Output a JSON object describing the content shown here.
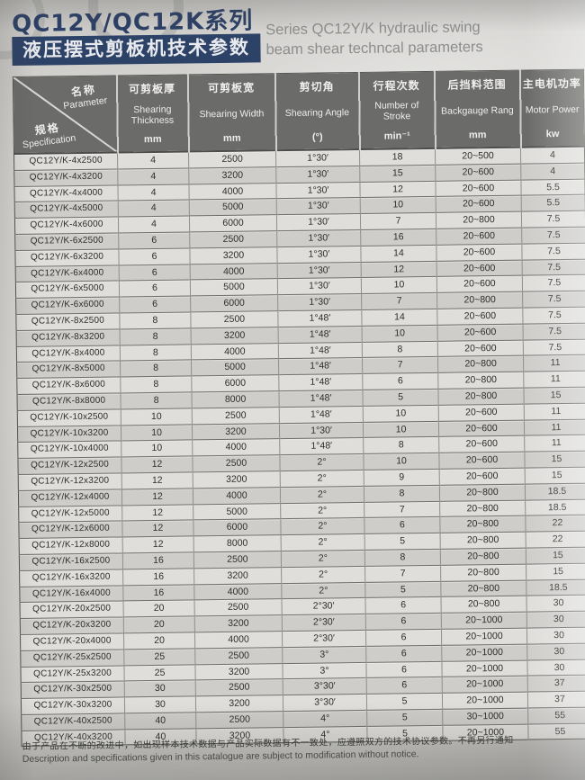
{
  "header": {
    "title_cn": "QC12Y/QC12K系列",
    "banner_cn": "液压摆式剪板机技术参数",
    "subtitle_en_line1": "Series QC12Y/K hydraulic swing",
    "subtitle_en_line2": "beam shear techncal parameters"
  },
  "table": {
    "corner": {
      "name_cn": "名称",
      "name_en": "Parameter",
      "spec_cn": "规格",
      "spec_en": "Specification"
    },
    "columns": [
      {
        "cn": "可剪板厚",
        "en": "Shearing Thickness",
        "unit": "mm"
      },
      {
        "cn": "可剪板宽",
        "en": "Shearing Width",
        "unit": "mm"
      },
      {
        "cn": "剪切角",
        "en": "Shearing Angle",
        "unit": "(°)"
      },
      {
        "cn": "行程次数",
        "en": "Number of Stroke",
        "unit": "min⁻¹"
      },
      {
        "cn": "后挡料范围",
        "en": "Backgauge Rang",
        "unit": "mm"
      },
      {
        "cn": "主电机功率",
        "en": "Motor Power",
        "unit": "kw"
      }
    ],
    "rows": [
      [
        "QC12Y/K-4x2500",
        "4",
        "2500",
        "1°30′",
        "18",
        "20~500",
        "4"
      ],
      [
        "QC12Y/K-4x3200",
        "4",
        "3200",
        "1°30′",
        "15",
        "20~600",
        "4"
      ],
      [
        "QC12Y/K-4x4000",
        "4",
        "4000",
        "1°30′",
        "12",
        "20~600",
        "5.5"
      ],
      [
        "QC12Y/K-4x5000",
        "4",
        "5000",
        "1°30′",
        "10",
        "20~600",
        "5.5"
      ],
      [
        "QC12Y/K-4x6000",
        "4",
        "6000",
        "1°30′",
        "7",
        "20~800",
        "7.5"
      ],
      [
        "QC12Y/K-6x2500",
        "6",
        "2500",
        "1°30′",
        "16",
        "20~600",
        "7.5"
      ],
      [
        "QC12Y/K-6x3200",
        "6",
        "3200",
        "1°30′",
        "14",
        "20~600",
        "7.5"
      ],
      [
        "QC12Y/K-6x4000",
        "6",
        "4000",
        "1°30′",
        "12",
        "20~600",
        "7.5"
      ],
      [
        "QC12Y/K-6x5000",
        "6",
        "5000",
        "1°30′",
        "10",
        "20~600",
        "7.5"
      ],
      [
        "QC12Y/K-6x6000",
        "6",
        "6000",
        "1°30′",
        "7",
        "20~800",
        "7.5"
      ],
      [
        "QC12Y/K-8x2500",
        "8",
        "2500",
        "1°48′",
        "14",
        "20~600",
        "7.5"
      ],
      [
        "QC12Y/K-8x3200",
        "8",
        "3200",
        "1°48′",
        "10",
        "20~600",
        "7.5"
      ],
      [
        "QC12Y/K-8x4000",
        "8",
        "4000",
        "1°48′",
        "8",
        "20~600",
        "7.5"
      ],
      [
        "QC12Y/K-8x5000",
        "8",
        "5000",
        "1°48′",
        "7",
        "20~800",
        "11"
      ],
      [
        "QC12Y/K-8x6000",
        "8",
        "6000",
        "1°48′",
        "6",
        "20~800",
        "11"
      ],
      [
        "QC12Y/K-8x8000",
        "8",
        "8000",
        "1°48′",
        "5",
        "20~800",
        "15"
      ],
      [
        "QC12Y/K-10x2500",
        "10",
        "2500",
        "1°48′",
        "10",
        "20~600",
        "11"
      ],
      [
        "QC12Y/K-10x3200",
        "10",
        "3200",
        "1°30′",
        "10",
        "20~600",
        "11"
      ],
      [
        "QC12Y/K-10x4000",
        "10",
        "4000",
        "1°48′",
        "8",
        "20~600",
        "11"
      ],
      [
        "QC12Y/K-12x2500",
        "12",
        "2500",
        "2°",
        "10",
        "20~600",
        "15"
      ],
      [
        "QC12Y/K-12x3200",
        "12",
        "3200",
        "2°",
        "9",
        "20~600",
        "15"
      ],
      [
        "QC12Y/K-12x4000",
        "12",
        "4000",
        "2°",
        "8",
        "20~800",
        "18.5"
      ],
      [
        "QC12Y/K-12x5000",
        "12",
        "5000",
        "2°",
        "7",
        "20~800",
        "18.5"
      ],
      [
        "QC12Y/K-12x6000",
        "12",
        "6000",
        "2°",
        "6",
        "20~800",
        "22"
      ],
      [
        "QC12Y/K-12x8000",
        "12",
        "8000",
        "2°",
        "5",
        "20~800",
        "22"
      ],
      [
        "QC12Y/K-16x2500",
        "16",
        "2500",
        "2°",
        "8",
        "20~800",
        "15"
      ],
      [
        "QC12Y/K-16x3200",
        "16",
        "3200",
        "2°",
        "7",
        "20~800",
        "15"
      ],
      [
        "QC12Y/K-16x4000",
        "16",
        "4000",
        "2°",
        "5",
        "20~800",
        "18.5"
      ],
      [
        "QC12Y/K-20x2500",
        "20",
        "2500",
        "2°30′",
        "6",
        "20~800",
        "30"
      ],
      [
        "QC12Y/K-20x3200",
        "20",
        "3200",
        "2°30′",
        "6",
        "20~1000",
        "30"
      ],
      [
        "QC12Y/K-20x4000",
        "20",
        "4000",
        "2°30′",
        "6",
        "20~1000",
        "30"
      ],
      [
        "QC12Y/K-25x2500",
        "25",
        "2500",
        "3°",
        "6",
        "20~1000",
        "30"
      ],
      [
        "QC12Y/K-25x3200",
        "25",
        "3200",
        "3°",
        "6",
        "20~1000",
        "30"
      ],
      [
        "QC12Y/K-30x2500",
        "30",
        "2500",
        "3°30′",
        "6",
        "20~1000",
        "37"
      ],
      [
        "QC12Y/K-30x3200",
        "30",
        "3200",
        "3°30′",
        "5",
        "20~1000",
        "37"
      ],
      [
        "QC12Y/K-40x2500",
        "40",
        "2500",
        "4°",
        "5",
        "30~1000",
        "55"
      ],
      [
        "QC12Y/K-40x3200",
        "40",
        "3200",
        "4°",
        "5",
        "20~1000",
        "55"
      ]
    ]
  },
  "footer": {
    "note_cn": "由于产品在不断的改进中，如出现样本技术数据与产品实际数据有不一致处，应遵照双方的技术协议参数。不再另行通知",
    "note_en": "Description and specifications given in this catalogue are subject to modification without notice."
  },
  "colors": {
    "navy": "#2d4267",
    "header_gray": "#6b6b69"
  }
}
